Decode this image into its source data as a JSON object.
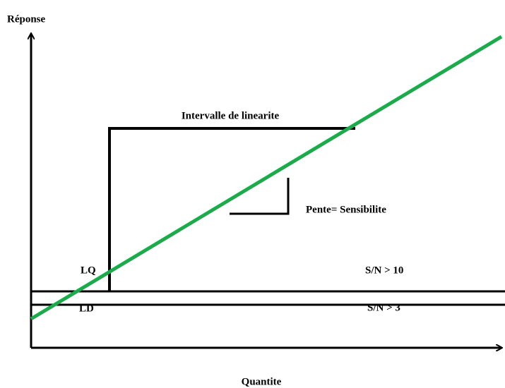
{
  "axes": {
    "y_label": "Réponse",
    "x_label": "Quantite"
  },
  "annotations": {
    "range": "Intervalle de linearite",
    "slope": "Pente= Sensibilite",
    "lq": "LQ",
    "ld": "LD",
    "sn_lq": "S/N > 10",
    "sn_ld": "S/N > 3"
  }
}
